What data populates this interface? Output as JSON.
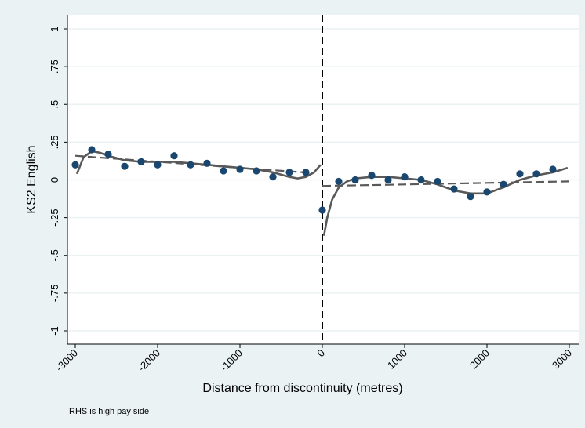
{
  "chart_data": {
    "type": "scatter",
    "title": "",
    "xlabel": "Distance from discontinuity (metres)",
    "ylabel": "KS2 English",
    "note": "RHS is high pay side",
    "xlim": [
      -3000,
      3000
    ],
    "ylim": [
      -1,
      1
    ],
    "x_ticks": [
      -3000,
      -2000,
      -1000,
      0,
      1000,
      2000,
      3000
    ],
    "x_tick_labels": [
      "-3000",
      "-2000",
      "-1000",
      "0",
      "1000",
      "2000",
      "3000"
    ],
    "y_ticks": [
      -1,
      -0.75,
      -0.5,
      -0.25,
      0,
      0.25,
      0.5,
      0.75,
      1
    ],
    "y_tick_labels": [
      "-1",
      "-.75",
      "-.5",
      "-.25",
      "0",
      ".25",
      ".5",
      ".75",
      "1"
    ],
    "grid": true,
    "legend": "none",
    "discontinuity_x": 0,
    "colors": {
      "points": "#1a476f",
      "curves": "#595959",
      "grid": "#eaf2f3",
      "plot_background": "#ffffff",
      "outer_background": "#eaf2f3"
    },
    "series": [
      {
        "type": "scatter",
        "x": [
          -3000,
          -2800,
          -2600,
          -2400,
          -2200,
          -2000,
          -1800,
          -1600,
          -1400,
          -1200,
          -1000,
          -800,
          -600,
          -400,
          -200,
          0,
          200,
          400,
          600,
          800,
          1000,
          1200,
          1400,
          1600,
          1800,
          2000,
          2200,
          2400,
          2600,
          2800
        ],
        "y": [
          0.1,
          0.2,
          0.17,
          0.09,
          0.12,
          0.1,
          0.16,
          0.1,
          0.11,
          0.06,
          0.07,
          0.06,
          0.02,
          0.05,
          0.05,
          -0.2,
          -0.01,
          0.0,
          0.03,
          0.0,
          0.02,
          0.0,
          -0.01,
          -0.06,
          -0.11,
          -0.08,
          -0.03,
          0.04,
          0.04,
          0.07
        ]
      },
      {
        "type": "line",
        "style": "dashed",
        "segment": "left",
        "x": [
          -3000,
          -2000,
          -1000,
          -100
        ],
        "y": [
          0.16,
          0.12,
          0.08,
          0.045
        ]
      },
      {
        "type": "line",
        "style": "dashed",
        "segment": "right",
        "x": [
          0,
          1000,
          2000,
          3000
        ],
        "y": [
          -0.04,
          -0.03,
          -0.02,
          -0.01
        ]
      },
      {
        "type": "line",
        "style": "solid",
        "segment": "left",
        "x": [
          -2980,
          -2900,
          -2800,
          -2700,
          -2600,
          -2400,
          -2200,
          -2000,
          -1800,
          -1600,
          -1400,
          -1200,
          -1000,
          -800,
          -600,
          -400,
          -300,
          -200,
          -100,
          -20
        ],
        "y": [
          0.04,
          0.15,
          0.19,
          0.18,
          0.16,
          0.13,
          0.12,
          0.12,
          0.12,
          0.11,
          0.1,
          0.09,
          0.08,
          0.07,
          0.05,
          0.02,
          0.01,
          0.02,
          0.05,
          0.1
        ]
      },
      {
        "type": "line",
        "style": "solid",
        "segment": "right",
        "x": [
          20,
          60,
          120,
          200,
          300,
          400,
          600,
          800,
          1000,
          1200,
          1400,
          1600,
          1800,
          2000,
          2200,
          2400,
          2600,
          2800,
          2980
        ],
        "y": [
          -0.37,
          -0.25,
          -0.13,
          -0.05,
          -0.01,
          0.01,
          0.02,
          0.02,
          0.01,
          0.0,
          -0.03,
          -0.07,
          -0.09,
          -0.09,
          -0.05,
          0.0,
          0.03,
          0.05,
          0.08
        ]
      }
    ]
  }
}
